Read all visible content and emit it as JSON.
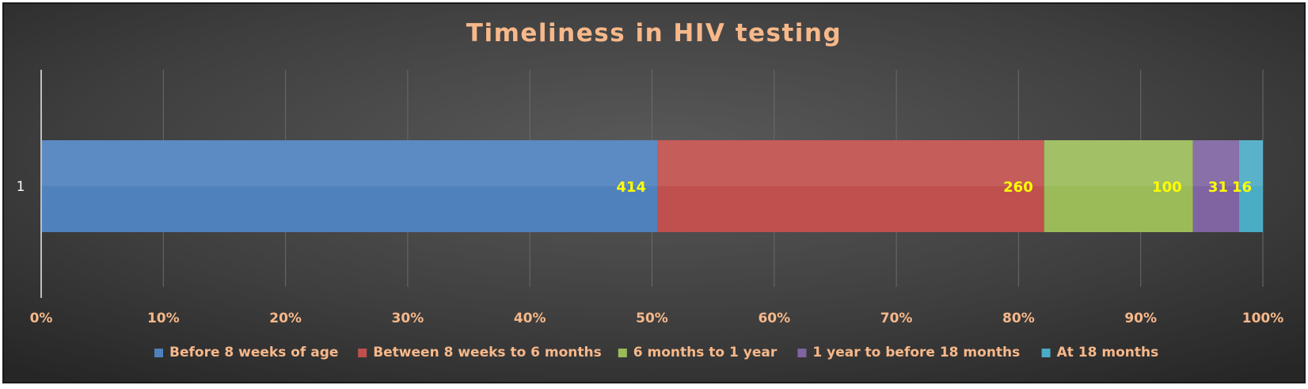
{
  "chart_data": {
    "type": "bar",
    "orientation": "horizontal",
    "stacked": "percent",
    "title": "Timeliness in HIV testing",
    "categories": [
      "1"
    ],
    "series": [
      {
        "name": "Before 8 weeks of age",
        "values": [
          414
        ],
        "color": "#4f81bd"
      },
      {
        "name": "Between  8 weeks to 6 months",
        "values": [
          260
        ],
        "color": "#c0504d"
      },
      {
        "name": "6 months to 1 year",
        "values": [
          100
        ],
        "color": "#9bbb59"
      },
      {
        "name": "1 year to before 18 months",
        "values": [
          31
        ],
        "color": "#8064a2"
      },
      {
        "name": "At 18 months",
        "values": [
          16
        ],
        "color": "#4bacc6"
      }
    ],
    "x_ticks": [
      "0%",
      "10%",
      "20%",
      "30%",
      "40%",
      "50%",
      "60%",
      "70%",
      "80%",
      "90%",
      "100%"
    ],
    "xlim": [
      0,
      100
    ],
    "grid": true,
    "legend": "bottom",
    "colors": {
      "title": "#f7b88a",
      "tick_labels": "#f7b88a",
      "data_labels": "#ffff00",
      "category_label": "#ffffff",
      "legend_text": "#f7b88a",
      "background": "#3a3a3a"
    }
  }
}
